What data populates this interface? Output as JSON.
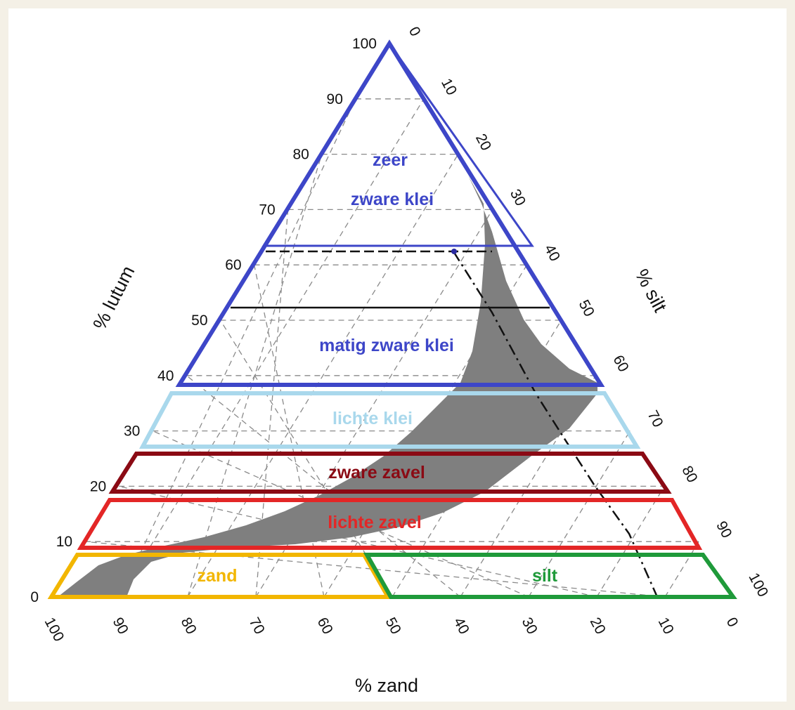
{
  "axes": {
    "lutum": {
      "title": "% lutum",
      "ticks": [
        "0",
        "10",
        "20",
        "30",
        "40",
        "50",
        "60",
        "70",
        "80",
        "90",
        "100"
      ]
    },
    "silt": {
      "title": "% silt",
      "ticks": [
        "0",
        "10",
        "20",
        "30",
        "40",
        "50",
        "60",
        "70",
        "80",
        "90",
        "100"
      ]
    },
    "zand": {
      "title": "% zand",
      "ticks": [
        "100",
        "90",
        "80",
        "70",
        "60",
        "50",
        "40",
        "30",
        "20",
        "10",
        "0"
      ]
    }
  },
  "classes": {
    "zeer_zware_klei": {
      "line1": "zeer",
      "line2": "zware klei",
      "color": "#3d46c8"
    },
    "matig_zware_klei": {
      "label": "matig zware klei",
      "color": "#3d46c8"
    },
    "lichte_klei": {
      "label": "lichte klei",
      "color": "#a9d8ec"
    },
    "zware_zavel": {
      "label": "zware zavel",
      "color": "#8b0a14"
    },
    "lichte_zavel": {
      "label": "lichte zavel",
      "color": "#e32626"
    },
    "zand": {
      "label": "zand",
      "color": "#f2b600"
    },
    "silt": {
      "label": "silt",
      "color": "#1f9a3a"
    }
  },
  "colors": {
    "band": "#7f7f7f",
    "grid": "#888888"
  }
}
